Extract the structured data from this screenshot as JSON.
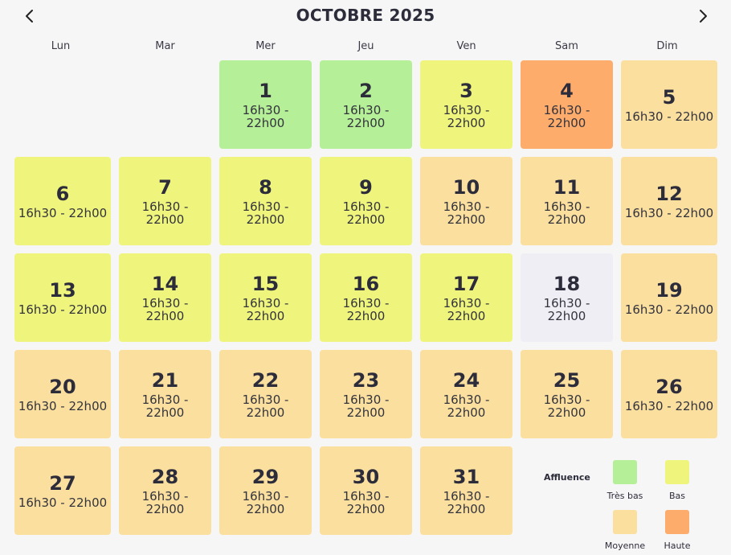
{
  "header": {
    "title": "OCTOBRE 2025",
    "prev_icon": "chevron-left-icon",
    "next_icon": "chevron-right-icon"
  },
  "weekdays": [
    "Lun",
    "Mar",
    "Mer",
    "Jeu",
    "Ven",
    "Sam",
    "Dim"
  ],
  "hours_text": "16h30 - 22h00",
  "colors": {
    "tres_bas": "#b5ef97",
    "bas": "#eff57c",
    "moyenne": "#fbdf9e",
    "haute": "#fdac6b",
    "closed": "#efeef5"
  },
  "days": [
    {
      "day": "1",
      "hours": "16h30 - 22h00",
      "level": "tres_bas"
    },
    {
      "day": "2",
      "hours": "16h30 - 22h00",
      "level": "tres_bas"
    },
    {
      "day": "3",
      "hours": "16h30 - 22h00",
      "level": "bas"
    },
    {
      "day": "4",
      "hours": "16h30 - 22h00",
      "level": "haute"
    },
    {
      "day": "5",
      "hours": "16h30 - 22h00",
      "level": "moyenne"
    },
    {
      "day": "6",
      "hours": "16h30 - 22h00",
      "level": "bas"
    },
    {
      "day": "7",
      "hours": "16h30 - 22h00",
      "level": "bas"
    },
    {
      "day": "8",
      "hours": "16h30 - 22h00",
      "level": "bas"
    },
    {
      "day": "9",
      "hours": "16h30 - 22h00",
      "level": "bas"
    },
    {
      "day": "10",
      "hours": "16h30 - 22h00",
      "level": "moyenne"
    },
    {
      "day": "11",
      "hours": "16h30 - 22h00",
      "level": "moyenne"
    },
    {
      "day": "12",
      "hours": "16h30 - 22h00",
      "level": "moyenne"
    },
    {
      "day": "13",
      "hours": "16h30 - 22h00",
      "level": "bas"
    },
    {
      "day": "14",
      "hours": "16h30 - 22h00",
      "level": "bas"
    },
    {
      "day": "15",
      "hours": "16h30 - 22h00",
      "level": "bas"
    },
    {
      "day": "16",
      "hours": "16h30 - 22h00",
      "level": "bas"
    },
    {
      "day": "17",
      "hours": "16h30 - 22h00",
      "level": "bas"
    },
    {
      "day": "18",
      "hours": "16h30 - 22h00",
      "level": "closed"
    },
    {
      "day": "19",
      "hours": "16h30 - 22h00",
      "level": "moyenne"
    },
    {
      "day": "20",
      "hours": "16h30 - 22h00",
      "level": "moyenne"
    },
    {
      "day": "21",
      "hours": "16h30 - 22h00",
      "level": "moyenne"
    },
    {
      "day": "22",
      "hours": "16h30 - 22h00",
      "level": "moyenne"
    },
    {
      "day": "23",
      "hours": "16h30 - 22h00",
      "level": "moyenne"
    },
    {
      "day": "24",
      "hours": "16h30 - 22h00",
      "level": "moyenne"
    },
    {
      "day": "25",
      "hours": "16h30 - 22h00",
      "level": "moyenne"
    },
    {
      "day": "26",
      "hours": "16h30 - 22h00",
      "level": "moyenne"
    },
    {
      "day": "27",
      "hours": "16h30 - 22h00",
      "level": "moyenne"
    },
    {
      "day": "28",
      "hours": "16h30 - 22h00",
      "level": "moyenne"
    },
    {
      "day": "29",
      "hours": "16h30 - 22h00",
      "level": "moyenne"
    },
    {
      "day": "30",
      "hours": "16h30 - 22h00",
      "level": "moyenne"
    },
    {
      "day": "31",
      "hours": "16h30 - 22h00",
      "level": "moyenne"
    }
  ],
  "legend": {
    "title": "Affluence",
    "items": [
      {
        "label": "Très bas",
        "level": "tres_bas"
      },
      {
        "label": "Bas",
        "level": "bas"
      },
      {
        "label": "Moyenne",
        "level": "moyenne"
      },
      {
        "label": "Haute",
        "level": "haute"
      }
    ]
  }
}
